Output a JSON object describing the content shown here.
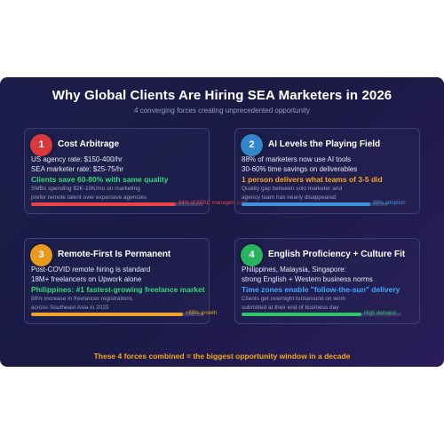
{
  "header": {
    "title": "Why Global Clients Are Hiring SEA Marketers in 2026",
    "subtitle": "4 converging forces creating unprecedented opportunity"
  },
  "cards": [
    {
      "number": "1",
      "title": "Cost Arbitrage",
      "badge_color": "#d9383c",
      "lines": [
        "US agency rate: $150-400/hr",
        "SEA marketer rate: $25-75/hr"
      ],
      "highlight": "Clients save 60-80% with same quality",
      "notes": [
        "SMBs spending $2K-10K/mo on marketing",
        "prefer remote talent over expensive agencies"
      ],
      "bar": {
        "label": "84% of APAC managers outs",
        "fraction": 0.84,
        "color": "#e8454a"
      }
    },
    {
      "number": "2",
      "title": "AI Levels the Playing Field",
      "badge_color": "#2f86c9",
      "lines": [
        "88% of marketers now use AI tools",
        "30-60% time savings on deliverables"
      ],
      "highlight": "1 person delivers what teams of 3-5 did",
      "notes": [
        "Quality gap between solo marketer and",
        "agency team has nearly disappeared"
      ],
      "bar": {
        "label": "88% adoption",
        "fraction": 0.88,
        "color": "#3e93db"
      }
    },
    {
      "number": "3",
      "title": "Remote-First Is Permanent",
      "badge_color": "#e59a1d",
      "lines": [
        "Post-COVID remote hiring is standard",
        "18M+ freelancers on Upwork alone"
      ],
      "highlight": "Philippines: #1 fastest-growing freelance market",
      "notes": [
        "88% increase in freelancer registrations",
        "across Southeast Asia in 2025"
      ],
      "bar": {
        "label": "+88% growth",
        "fraction": 0.88,
        "color": "#f0a52a"
      }
    },
    {
      "number": "4",
      "title": "English Proficiency + Culture Fit",
      "badge_color": "#28b45f",
      "lines": [
        "Philippines, Malaysia, Singapore:",
        "strong English + Western business norms"
      ],
      "highlight": "Time zones enable \"follow-the-sun\" delivery",
      "notes": [
        "Clients get overnight turnaround on work",
        "submitted at their end of business day"
      ],
      "bar": {
        "label": "High demand",
        "fraction": 0.75,
        "color": "#2fc46a"
      }
    }
  ],
  "footer": "These 4 forces combined = the biggest opportunity window in a decade"
}
